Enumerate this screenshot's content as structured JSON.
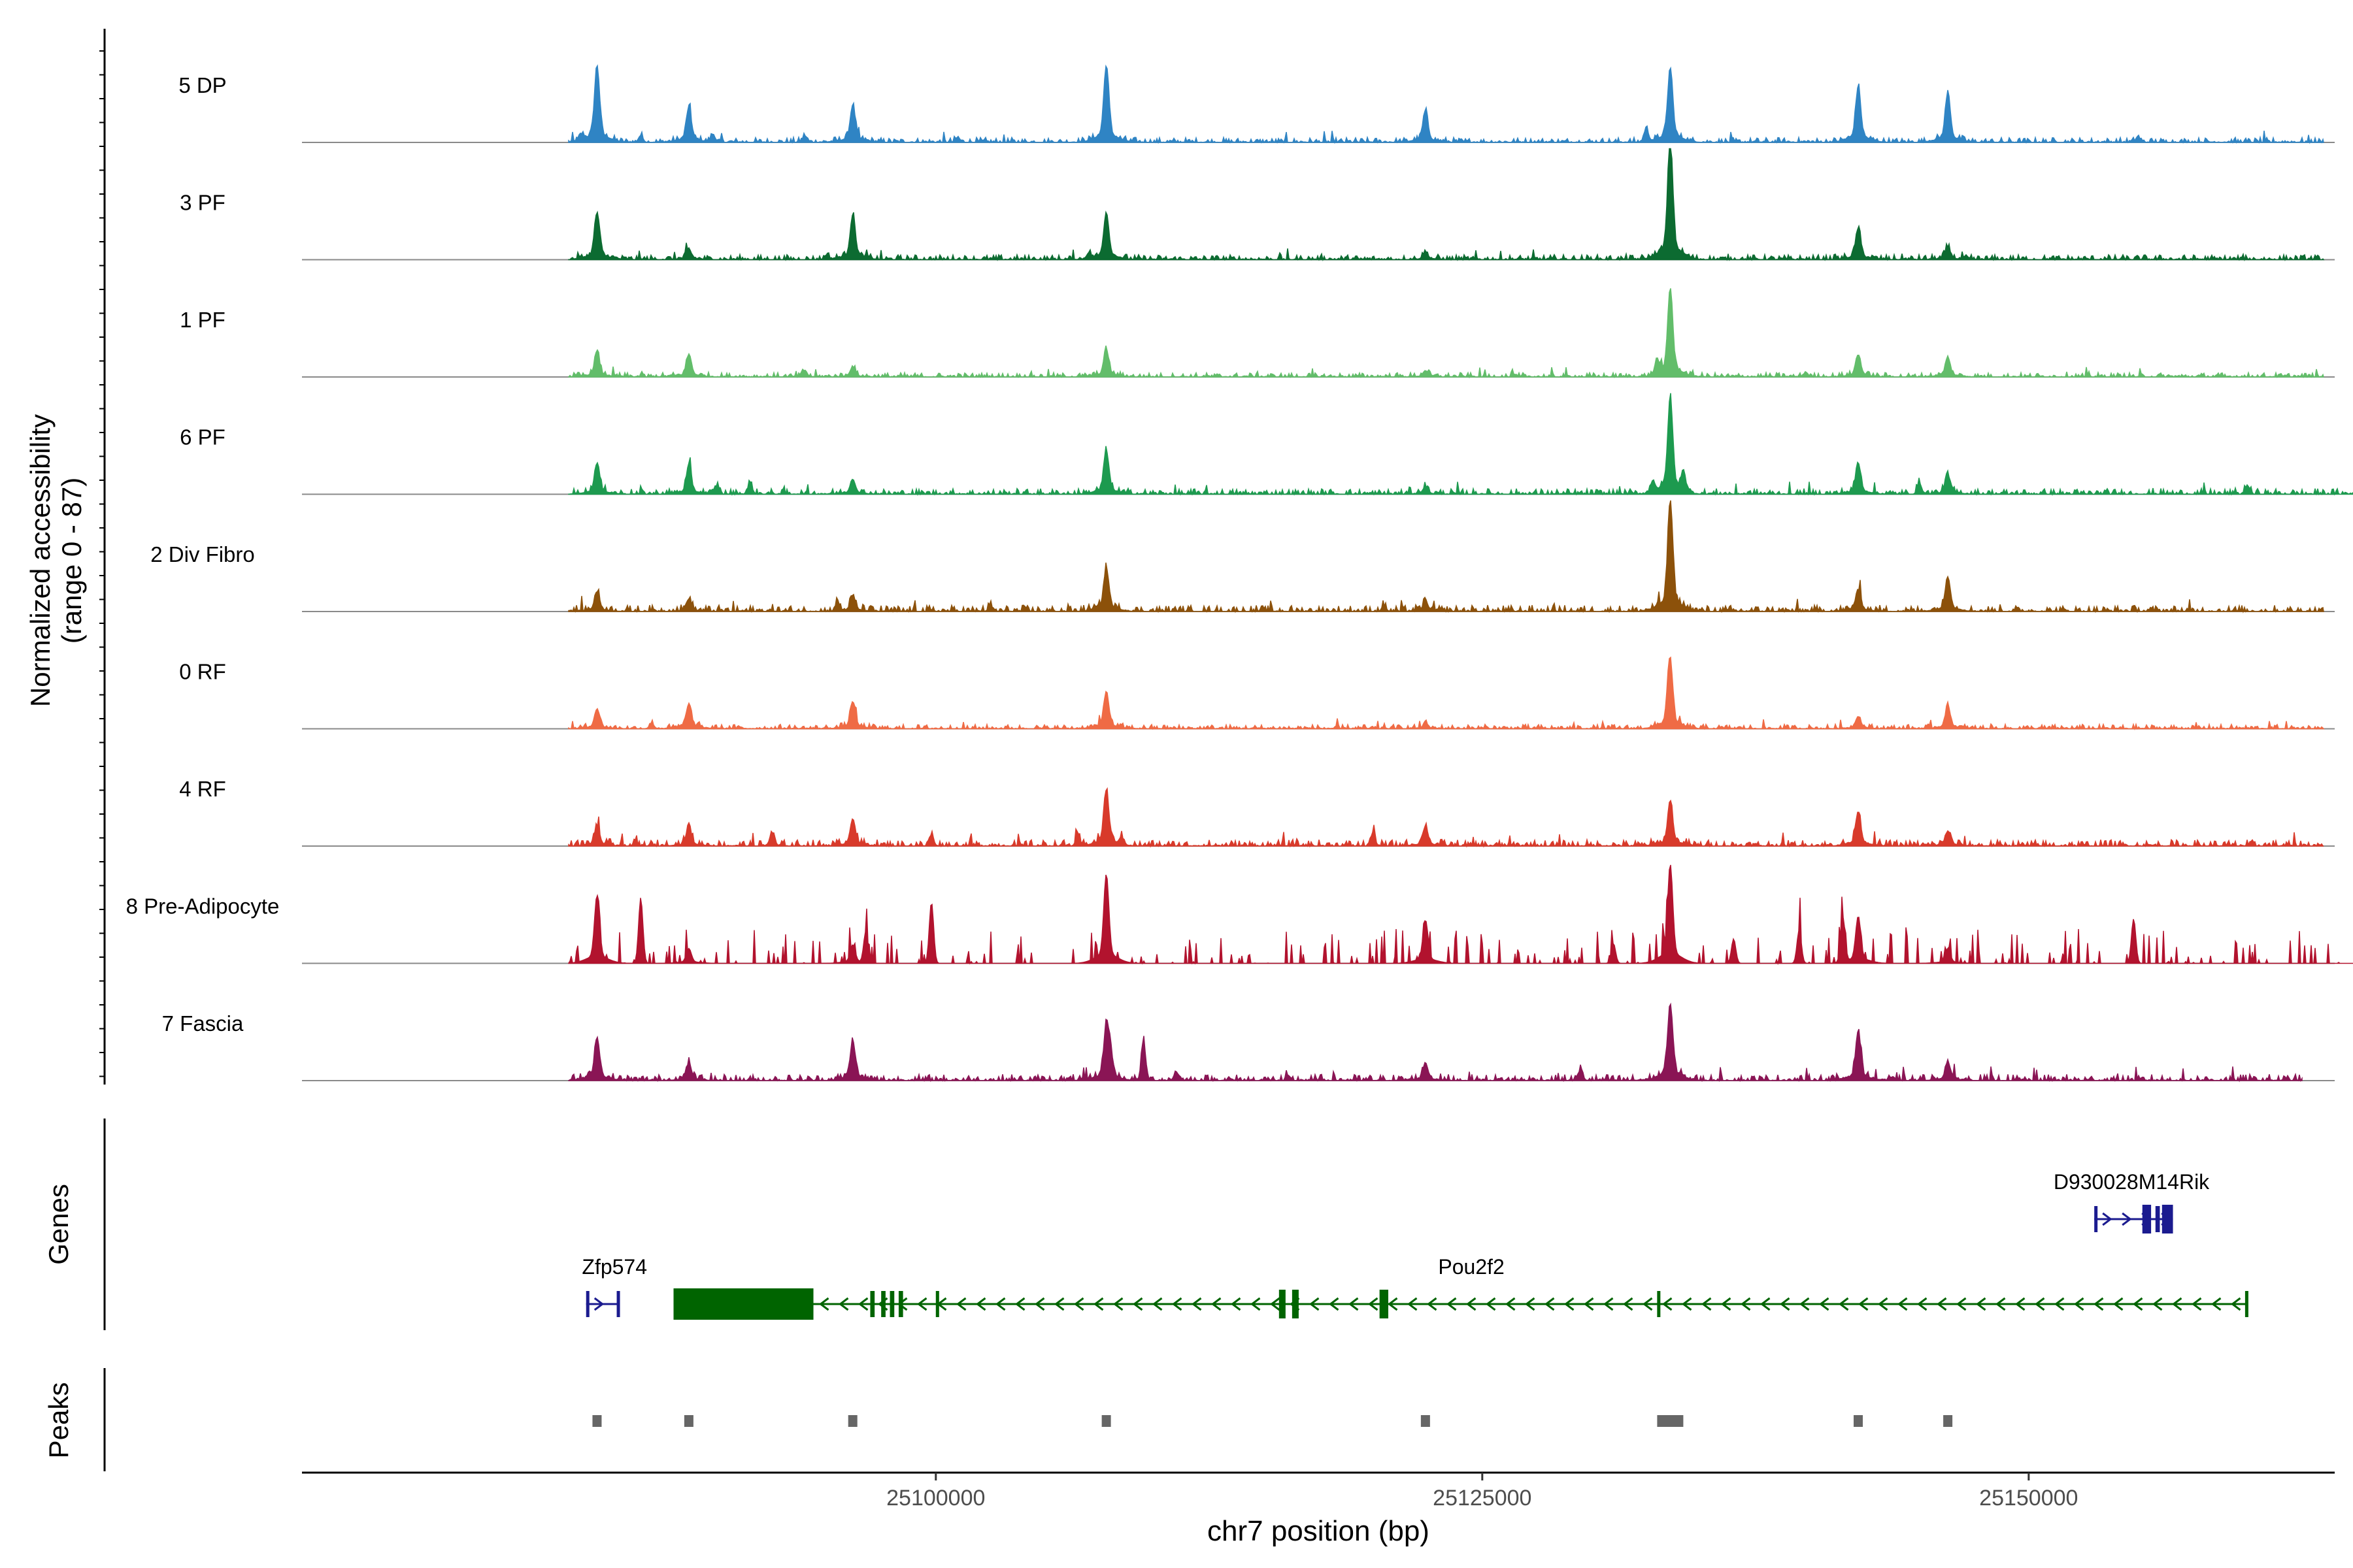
{
  "chart_data": {
    "type": "area",
    "subtype": "coverage-plot",
    "genomic_range": [
      25071000,
      25164000
    ],
    "ylabel_lines": [
      "Normalized accessibility",
      "(range 0 - 87)"
    ],
    "y_range": [
      0,
      87
    ],
    "xlabel": "chr7 position (bp)",
    "x_ticks": [
      {
        "value": 25100000,
        "label": "25100000"
      },
      {
        "value": 25125000,
        "label": "25125000"
      },
      {
        "value": 25150000,
        "label": "25150000"
      }
    ],
    "peaks": [
      25084500,
      25088700,
      25096200,
      25107800,
      25122400,
      25133600,
      25142200,
      25146300
    ],
    "tracks": [
      {
        "name": "5 DP",
        "color": "#2f84c4",
        "end": 25163500,
        "amps": [
          0.62,
          0.28,
          0.3,
          0.62,
          0.25,
          0.6,
          0.45,
          0.4
        ],
        "sec": [
          [
            25083800,
            0.05
          ],
          [
            25086500,
            0.06
          ],
          [
            25089800,
            0.07
          ],
          [
            25094000,
            0.06
          ],
          [
            25101000,
            0.04
          ],
          [
            25132500,
            0.12
          ],
          [
            25155000,
            0.05
          ]
        ],
        "noise": 0.04,
        "sparse": false
      },
      {
        "name": "3 PF",
        "color": "#0c6b31",
        "end": 25163500,
        "amps": [
          0.38,
          0.08,
          0.36,
          0.38,
          0.06,
          1.0,
          0.25,
          0.1
        ],
        "sec": [
          [
            25107000,
            0.05
          ],
          [
            25095000,
            0.04
          ]
        ],
        "noise": 0.04,
        "sparse": false
      },
      {
        "name": "1 PF",
        "color": "#62bd6a",
        "end": 25163500,
        "amps": [
          0.2,
          0.18,
          0.08,
          0.22,
          0.05,
          0.72,
          0.18,
          0.15
        ],
        "sec": [
          [
            25094000,
            0.06
          ],
          [
            25133000,
            0.12
          ],
          [
            25139800,
            0.04
          ]
        ],
        "noise": 0.035,
        "sparse": false
      },
      {
        "name": "6 PF",
        "color": "#1d9a4f",
        "end": 25166000,
        "amps": [
          0.25,
          0.22,
          0.12,
          0.35,
          0.06,
          0.78,
          0.25,
          0.15
        ],
        "sec": [
          [
            25091500,
            0.1
          ],
          [
            25090000,
            0.08
          ],
          [
            25134200,
            0.18
          ],
          [
            25132800,
            0.1
          ],
          [
            25145000,
            0.1
          ],
          [
            25160000,
            0.08
          ]
        ],
        "noise": 0.045,
        "sparse": false
      },
      {
        "name": "2 Div Fibro",
        "color": "#8c510a",
        "end": 25163500,
        "amps": [
          0.16,
          0.1,
          0.12,
          0.35,
          0.08,
          0.9,
          0.18,
          0.28
        ],
        "sec": [
          [
            25095500,
            0.08
          ],
          [
            25102500,
            0.05
          ],
          [
            25120500,
            0.05
          ]
        ],
        "noise": 0.05,
        "sparse": false
      },
      {
        "name": "0 RF",
        "color": "#ef6b45",
        "end": 25163500,
        "amps": [
          0.16,
          0.2,
          0.22,
          0.3,
          0.04,
          0.52,
          0.1,
          0.18
        ],
        "sec": [
          [
            25087000,
            0.05
          ],
          [
            25133500,
            0.1
          ]
        ],
        "noise": 0.035,
        "sparse": false
      },
      {
        "name": "4 RF",
        "color": "#d83a2b",
        "end": 25163500,
        "amps": [
          0.16,
          0.16,
          0.22,
          0.45,
          0.16,
          0.36,
          0.28,
          0.12
        ],
        "sec": [
          [
            25092500,
            0.12
          ],
          [
            25099800,
            0.1
          ],
          [
            25106500,
            0.08
          ],
          [
            25108500,
            0.06
          ],
          [
            25120000,
            0.12
          ]
        ],
        "noise": 0.05,
        "sparse": false
      },
      {
        "name": "8 Pre-Adipocyte",
        "color": "#b2132e",
        "end": 25165500,
        "amps": [
          0.55,
          0.12,
          0.15,
          0.72,
          0.35,
          0.8,
          0.38,
          0.12
        ],
        "sec": [
          [
            25086500,
            0.58
          ],
          [
            25099800,
            0.55
          ],
          [
            25096800,
            0.28
          ],
          [
            25139500,
            0.3
          ],
          [
            25141500,
            0.4
          ],
          [
            25154800,
            0.4
          ],
          [
            25136500,
            0.22
          ],
          [
            25131000,
            0.18
          ]
        ],
        "noise": 0.18,
        "sparse": true
      },
      {
        "name": "7 Fascia",
        "color": "#8a1555",
        "end": 25162500,
        "amps": [
          0.35,
          0.14,
          0.32,
          0.45,
          0.14,
          0.62,
          0.4,
          0.15
        ],
        "sec": [
          [
            25108000,
            0.2
          ],
          [
            25109500,
            0.35
          ],
          [
            25111000,
            0.08
          ],
          [
            25129500,
            0.1
          ]
        ],
        "noise": 0.05,
        "sparse": false
      }
    ],
    "genes_label": "Genes",
    "peaks_label": "Peaks",
    "genes": [
      {
        "name": "Zfp574",
        "strand": "+",
        "start": 25084000,
        "end": 25085500,
        "color": "#1b1b8f",
        "label_x": 25085300,
        "row": 2,
        "blocks": [
          [
            25084000,
            25084100
          ],
          [
            25085400,
            25085500
          ]
        ]
      },
      {
        "name": "Pou2f2",
        "strand": "-",
        "start": 25088000,
        "end": 25160000,
        "color": "#006400",
        "label_x": 25124500,
        "row": 2,
        "blocks": [
          [
            25088000,
            25094400
          ],
          [
            25097000,
            25097200
          ],
          [
            25097500,
            25097700
          ],
          [
            25097900,
            25098100
          ],
          [
            25098300,
            25098500
          ],
          [
            25100000,
            25100150
          ],
          [
            25115700,
            25116000
          ],
          [
            25116300,
            25116600
          ],
          [
            25120300,
            25120700
          ],
          [
            25133000,
            25133100
          ],
          [
            25159900,
            25160000
          ]
        ]
      },
      {
        "name": "D930028M14Rik",
        "strand": "+",
        "start": 25153000,
        "end": 25156600,
        "color": "#1b1b8f",
        "label_x": 25154700,
        "row": 1,
        "blocks": [
          [
            25153000,
            25153100
          ],
          [
            25155200,
            25155600
          ],
          [
            25155800,
            25156000
          ],
          [
            25156100,
            25156600
          ]
        ]
      }
    ]
  }
}
